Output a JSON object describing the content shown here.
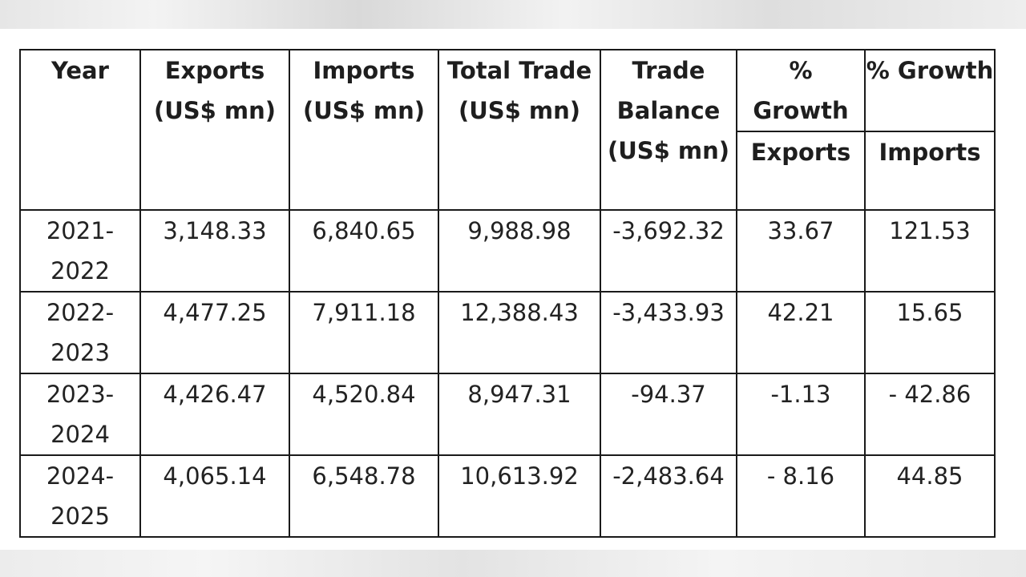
{
  "table": {
    "headers": {
      "year": "Year",
      "exports": "Exports (US$ mn)",
      "imports": "Imports (US$ mn)",
      "total_trade": "Total Trade (US$ mn)",
      "trade_balance": "Trade Balance (US$ mn)",
      "growth_exports_top": "% Growth",
      "growth_exports_bottom": "Exports",
      "growth_imports_top": "% Growth",
      "growth_imports_bottom": "Imports"
    },
    "rows": [
      {
        "year": "2021-2022",
        "exports": "3,148.33",
        "imports": "6,840.65",
        "total_trade": "9,988.98",
        "trade_balance": "-3,692.32",
        "growth_exports": "33.67",
        "growth_imports": "121.53"
      },
      {
        "year": "2022-2023",
        "exports": "4,477.25",
        "imports": "7,911.18",
        "total_trade": "12,388.43",
        "trade_balance": "-3,433.93",
        "growth_exports": "42.21",
        "growth_imports": "15.65"
      },
      {
        "year": "2023-2024",
        "exports": "4,426.47",
        "imports": "4,520.84",
        "total_trade": "8,947.31",
        "trade_balance": "-94.37",
        "growth_exports": "-1.13",
        "growth_imports": "- 42.86"
      },
      {
        "year": "2024-2025",
        "exports": "4,065.14",
        "imports": "6,548.78",
        "total_trade": "10,613.92",
        "trade_balance": "-2,483.64",
        "growth_exports": "- 8.16",
        "growth_imports": "44.85"
      }
    ]
  }
}
